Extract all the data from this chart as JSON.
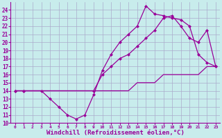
{
  "background_color": "#c8ecec",
  "grid_color": "#aaaacc",
  "line_color": "#990099",
  "xlim": [
    -0.5,
    23.5
  ],
  "ylim": [
    10,
    25
  ],
  "xlabel": "Windchill (Refroidissement éolien,°C)",
  "xlabel_fontsize": 6.5,
  "xticks": [
    0,
    1,
    2,
    3,
    4,
    5,
    6,
    7,
    8,
    9,
    10,
    11,
    12,
    13,
    14,
    15,
    16,
    17,
    18,
    19,
    20,
    21,
    22,
    23
  ],
  "yticks": [
    10,
    11,
    12,
    13,
    14,
    15,
    16,
    17,
    18,
    19,
    20,
    21,
    22,
    23,
    24
  ],
  "tick_fontsize": 5.5,
  "line1_x": [
    0,
    1,
    2,
    3,
    4,
    5,
    6,
    7,
    8,
    9,
    10,
    11,
    12,
    13,
    14,
    15,
    16,
    17,
    18,
    19,
    20,
    21,
    22,
    23
  ],
  "line1_y": [
    14,
    14,
    14,
    14,
    14,
    14,
    14,
    14,
    14,
    14,
    14,
    14,
    14,
    14,
    15,
    15,
    15,
    16,
    16,
    16,
    16,
    16,
    17,
    17
  ],
  "line2_x": [
    0,
    1,
    3,
    4,
    5,
    6,
    7,
    8,
    9,
    10,
    11,
    12,
    13,
    14,
    15,
    16,
    17,
    18,
    19,
    20,
    21,
    22,
    23
  ],
  "line2_y": [
    14,
    14,
    14,
    13,
    12,
    11,
    10.5,
    11,
    13.5,
    16.5,
    18.5,
    20,
    21,
    22,
    24.5,
    23.5,
    23.3,
    23,
    22.8,
    22,
    18.5,
    17.5,
    17
  ],
  "line3_x": [
    0,
    1,
    9,
    10,
    11,
    12,
    13,
    14,
    15,
    16,
    17,
    18,
    19,
    20,
    21,
    22,
    23
  ],
  "line3_y": [
    14,
    14,
    14,
    16,
    17,
    18,
    18.5,
    19.5,
    20.5,
    21.5,
    23,
    23.3,
    22,
    20.5,
    20,
    21.5,
    17
  ]
}
